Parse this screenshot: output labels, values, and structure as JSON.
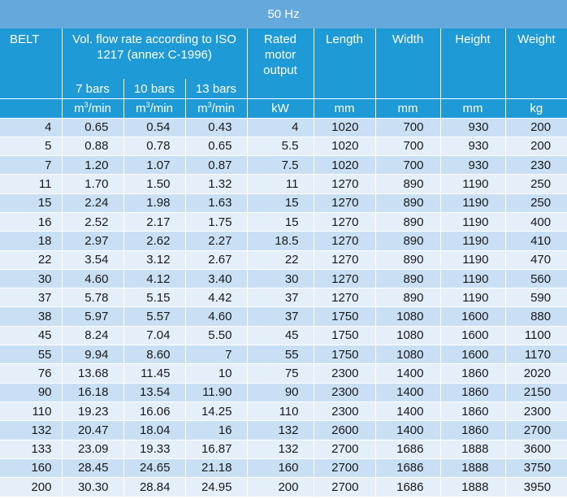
{
  "title": "50 Hz",
  "headers": {
    "belt": "BELT",
    "vol_flow": "Vol. flow rate according to ISO 1217 (annex C-1996)",
    "p7": "7 bars",
    "p10": "10 bars",
    "p13": "13 bars",
    "rated": "Rated motor output",
    "length": "Length",
    "width": "Width",
    "height": "Height",
    "weight": "Weight"
  },
  "units": {
    "flow_base": "m",
    "flow_sup": "3",
    "flow_tail": "/min",
    "power": "kW",
    "length": "mm",
    "width": "mm",
    "height": "mm",
    "weight": "kg"
  },
  "rows": [
    [
      "4",
      "0.65",
      "0.54",
      "0.43",
      "4",
      "1020",
      "700",
      "930",
      "200"
    ],
    [
      "5",
      "0.88",
      "0.78",
      "0.65",
      "5.5",
      "1020",
      "700",
      "930",
      "200"
    ],
    [
      "7",
      "1.20",
      "1.07",
      "0.87",
      "7.5",
      "1020",
      "700",
      "930",
      "230"
    ],
    [
      "11",
      "1.70",
      "1.50",
      "1.32",
      "11",
      "1270",
      "890",
      "1190",
      "250"
    ],
    [
      "15",
      "2.24",
      "1.98",
      "1.63",
      "15",
      "1270",
      "890",
      "1190",
      "250"
    ],
    [
      "16",
      "2.52",
      "2.17",
      "1.75",
      "15",
      "1270",
      "890",
      "1190",
      "400"
    ],
    [
      "18",
      "2.97",
      "2.62",
      "2.27",
      "18.5",
      "1270",
      "890",
      "1190",
      "410"
    ],
    [
      "22",
      "3.54",
      "3.12",
      "2.67",
      "22",
      "1270",
      "890",
      "1190",
      "470"
    ],
    [
      "30",
      "4.60",
      "4.12",
      "3.40",
      "30",
      "1270",
      "890",
      "1190",
      "560"
    ],
    [
      "37",
      "5.78",
      "5.15",
      "4.42",
      "37",
      "1270",
      "890",
      "1190",
      "590"
    ],
    [
      "38",
      "5.97",
      "5.57",
      "4.60",
      "37",
      "1750",
      "1080",
      "1600",
      "880"
    ],
    [
      "45",
      "8.24",
      "7.04",
      "5.50",
      "45",
      "1750",
      "1080",
      "1600",
      "1100"
    ],
    [
      "55",
      "9.94",
      "8.60",
      "7",
      "55",
      "1750",
      "1080",
      "1600",
      "1170"
    ],
    [
      "76",
      "13.68",
      "11.45",
      "10",
      "75",
      "2300",
      "1400",
      "1860",
      "2020"
    ],
    [
      "90",
      "16.18",
      "13.54",
      "11.90",
      "90",
      "2300",
      "1400",
      "1860",
      "2150"
    ],
    [
      "110",
      "19.23",
      "16.06",
      "14.25",
      "110",
      "2300",
      "1400",
      "1860",
      "2300"
    ],
    [
      "132",
      "20.47",
      "18.04",
      "16",
      "132",
      "2600",
      "1400",
      "1860",
      "2700"
    ],
    [
      "133",
      "23.09",
      "19.33",
      "16.87",
      "132",
      "2700",
      "1686",
      "1888",
      "3600"
    ],
    [
      "160",
      "28.45",
      "24.65",
      "21.18",
      "160",
      "2700",
      "1686",
      "1888",
      "3750"
    ],
    [
      "200",
      "30.30",
      "28.84",
      "24.95",
      "200",
      "2700",
      "1686",
      "1888",
      "3950"
    ]
  ]
}
